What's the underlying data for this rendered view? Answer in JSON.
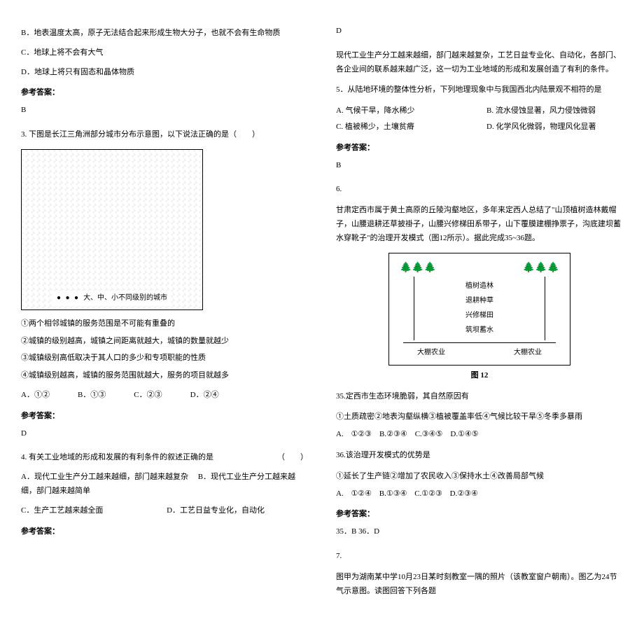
{
  "left": {
    "optB": "B．地表温度太高，原子无法结合起来形成生物大分子，也就不会有生命物质",
    "optC": "C．地球上将不会有大气",
    "optD": "D．地球上将只有固态和晶体物质",
    "ansLabel": "参考答案：",
    "ans2": "B",
    "q3": "3. 下图是长江三角洲部分城市分布示意图，以下说法正确的是（　　）",
    "legend": "大、中、小不同级别的城市",
    "q3_1": "①两个相邻城镇的服务范围是不可能有重叠的",
    "q3_2": "②城镇的级别越高，城镇之间距离就越大，城镇的数量就越少",
    "q3_3": "③城镇级别高低取决于其人口的多少和专项职能的性质",
    "q3_4": "④城镇级别越高，城镇的服务范围就越大，服务的项目就越多",
    "q3A": "A．①②",
    "q3B": "B．①③",
    "q3C": "C．②③",
    "q3D": "D．②④",
    "ans3": "D",
    "q4": "4. 有关工业地域的形成和发展的有利条件的叙述正确的是",
    "q4paren": "（　　）",
    "q4A": "A．现代工业生产分工越来越细，部门越来越复杂",
    "q4B": "B．现代工业生产分工越来越细，部门越来越简单",
    "q4C": "C．生产工艺越来越全面",
    "q4D": "D．工艺日益专业化，自动化",
    "ans4Label": "参考答案："
  },
  "right": {
    "ans4": "D",
    "q4cont1": "现代工业生产分工越来越细，部门越来越复杂，工艺日益专业化、自动化，各部门、各企业间的联系越来越广泛，这一切为工业地域的形成和发展创造了有利的条件。",
    "q5": "5．从陆地环境的整体性分析，下列地理现象中与我国西北内陆景观不相符的是",
    "q5A": "A. 气候干旱，降水稀少",
    "q5B": "B. 流水侵蚀显著，风力侵蚀微弱",
    "q5C": "C. 植被稀少，土壤贫瘠",
    "q5D": "D. 化学风化微弱，物理风化显著",
    "ans5Label": "参考答案：",
    "ans5": "B",
    "q6num": "6.",
    "q6text": "甘肃定西市属于黄土高原的丘陵沟壑地区，多年来定西人总结了\"山顶植树造林戴帽子，山腰退耕还草披褂子，山腰兴修梯田系带子，山下覆膜建棚挣票子，沟底建坝蓄水穿靴子\"的治理开发模式（图12所示）。据此完成35~36题。",
    "diag_trees": "🌲🌲🌲",
    "diag_l1": "植树造林",
    "diag_l2": "退耕种草",
    "diag_l3": "兴修梯田",
    "diag_l4": "筑坝蓄水",
    "diag_bottom_l": "大棚农业",
    "diag_bottom_r": "大棚农业",
    "diag_caption": "图 12",
    "q35": "35.定西市生态环境脆弱，其自然原因有",
    "q35items": "①土质疏密②地表沟壑纵横③植被覆盖率低④气候比较干旱⑤冬季多暴雨",
    "q35opts": "A. ①②③　B.②③④　C.③④⑤　D.①④⑤",
    "q36": "36.该治理开发模式的优势是",
    "q36items": "①延长了生产链②增加了农民收入③保持水土④改善局部气候",
    "q36opts": "A. ①②④ B.①③④ C.①②③ D.②③④",
    "ans6Label": "参考答案：",
    "ans6": "35．B 36．D",
    "q7num": "7.",
    "q7text": "图甲为湖南某中学10月23日某时刻教室一隅的照片（该教室窗户朝南）。图乙为24节气示意图。读图回答下列各题"
  }
}
